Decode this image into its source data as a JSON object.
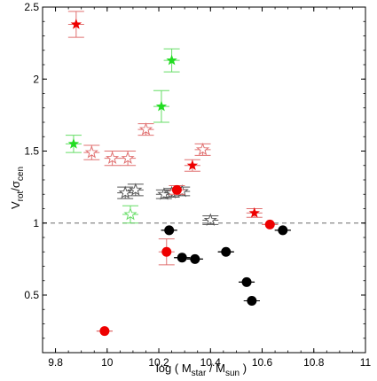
{
  "chart_data": {
    "type": "scatter",
    "xlabel_parts": {
      "pre": "log ( M",
      "sub1": "star",
      "mid": " / M",
      "sub2": "sun",
      "post": " )"
    },
    "ylabel_parts": {
      "main": "V",
      "sub1": "rot",
      "mid": "/σ",
      "sub2": "cen"
    },
    "xlim": [
      9.75,
      11.0
    ],
    "ylim": [
      0.1,
      2.5
    ],
    "x_ticks": [
      9.8,
      10.0,
      10.2,
      10.4,
      10.6,
      10.8,
      11.0
    ],
    "x_tick_labels": [
      "9.8",
      "10",
      "10.2",
      "10.4",
      "10.6",
      "10.8",
      "11"
    ],
    "y_ticks": [
      0.5,
      1.0,
      1.5,
      2.0,
      2.5
    ],
    "y_tick_labels": [
      "0.5",
      "1",
      "1.5",
      "2",
      "2.5"
    ],
    "reference_line": {
      "y": 1.0,
      "style": "dashed",
      "color": "#888888"
    },
    "colors": {
      "red": "#ee0000",
      "black": "#000000",
      "green": "#22dd22",
      "gray": "#555555",
      "pink_error": "#e07070",
      "green_error": "#66dd66",
      "gray_error": "#555555"
    },
    "series": [
      {
        "marker": "filled-star",
        "color": "red",
        "points": [
          {
            "x": 9.88,
            "y": 2.38,
            "err": 0.09
          },
          {
            "x": 10.33,
            "y": 1.4,
            "err": 0.04
          },
          {
            "x": 10.57,
            "y": 1.07,
            "err": 0.03
          }
        ]
      },
      {
        "marker": "filled-star",
        "color": "green",
        "points": [
          {
            "x": 9.87,
            "y": 1.55,
            "err": 0.06
          },
          {
            "x": 10.21,
            "y": 1.81,
            "err": 0.11
          },
          {
            "x": 10.25,
            "y": 2.13,
            "err": 0.08
          }
        ]
      },
      {
        "marker": "open-star",
        "color": "green",
        "points": [
          {
            "x": 10.09,
            "y": 1.06,
            "err": 0.06
          }
        ]
      },
      {
        "marker": "open-star",
        "color": "red",
        "points": [
          {
            "x": 9.94,
            "y": 1.49,
            "err": 0.05
          },
          {
            "x": 10.02,
            "y": 1.45,
            "err": 0.05
          },
          {
            "x": 10.08,
            "y": 1.45,
            "err": 0.05
          },
          {
            "x": 10.15,
            "y": 1.65,
            "err": 0.04
          },
          {
            "x": 10.37,
            "y": 1.51,
            "err": 0.04
          }
        ]
      },
      {
        "marker": "open-star",
        "color": "gray",
        "points": [
          {
            "x": 10.07,
            "y": 1.21,
            "err": 0.04
          },
          {
            "x": 10.11,
            "y": 1.23,
            "err": 0.04
          },
          {
            "x": 10.22,
            "y": 1.2,
            "err": 0.03
          },
          {
            "x": 10.25,
            "y": 1.21,
            "err": 0.03
          },
          {
            "x": 10.29,
            "y": 1.22,
            "err": 0.03
          },
          {
            "x": 10.4,
            "y": 1.02,
            "err": 0.03
          }
        ]
      },
      {
        "marker": "circle",
        "color": "red",
        "points": [
          {
            "x": 9.99,
            "y": 0.25,
            "err": 0.0
          },
          {
            "x": 10.23,
            "y": 0.8,
            "err": 0.09
          },
          {
            "x": 10.27,
            "y": 1.23,
            "err": 0.03
          },
          {
            "x": 10.63,
            "y": 0.99,
            "err": 0.0
          }
        ]
      },
      {
        "marker": "circle",
        "color": "black",
        "points": [
          {
            "x": 10.24,
            "y": 0.95,
            "err": 0.0
          },
          {
            "x": 10.29,
            "y": 0.76,
            "err": 0.0
          },
          {
            "x": 10.34,
            "y": 0.75,
            "err": 0.0
          },
          {
            "x": 10.46,
            "y": 0.8,
            "err": 0.0
          },
          {
            "x": 10.54,
            "y": 0.59,
            "err": 0.0
          },
          {
            "x": 10.56,
            "y": 0.46,
            "err": 0.0
          },
          {
            "x": 10.68,
            "y": 0.95,
            "err": 0.0
          }
        ]
      }
    ]
  }
}
